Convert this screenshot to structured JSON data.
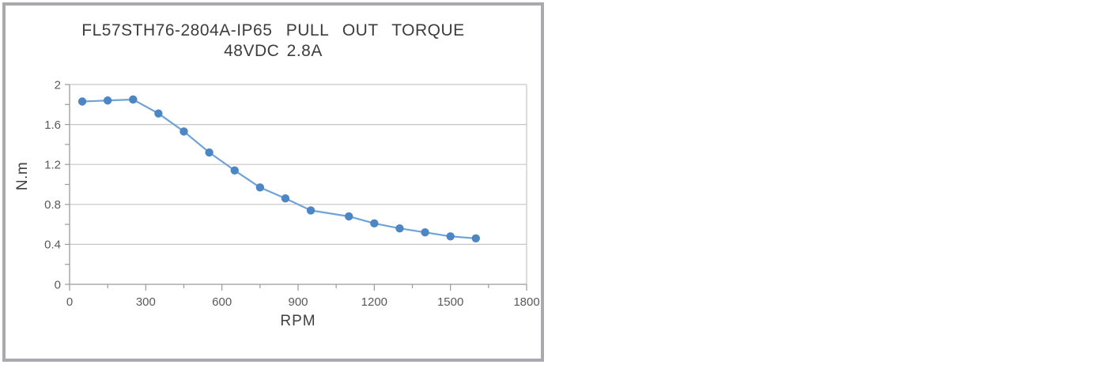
{
  "page": {
    "background_color": "#ffffff"
  },
  "chart": {
    "frame_border_color": "#a9a9ae",
    "title_color": "#3d3d3d",
    "tick_label_color": "#595959",
    "axis_line_color": "#9b9b9b",
    "gridline_color": "#c6c6c6"
  },
  "chart_data": {
    "type": "line",
    "title": "FL57STH76-2804A-IP65 PULL OUT TORQUE 48VDC 2.8A",
    "title_lines": [
      "FL57STH76-2804A-IP65 PULL OUT TORQUE",
      "48VDC 2.8A"
    ],
    "xlabel": "RPM",
    "ylabel": "N.m",
    "x": [
      50,
      150,
      250,
      350,
      450,
      550,
      650,
      750,
      850,
      950,
      1100,
      1200,
      1300,
      1400,
      1500,
      1600
    ],
    "values": [
      1.83,
      1.84,
      1.85,
      1.71,
      1.53,
      1.32,
      1.14,
      0.97,
      0.86,
      0.74,
      0.68,
      0.61,
      0.56,
      0.52,
      0.48,
      0.46
    ],
    "xlim": [
      0,
      1800
    ],
    "ylim": [
      0,
      2
    ],
    "x_major_ticks": [
      0,
      300,
      600,
      900,
      1200,
      1500,
      1800
    ],
    "x_tick_labels": [
      "0",
      "300",
      "600",
      "900",
      "1200",
      "1500",
      "1800"
    ],
    "x_minor_step": 150,
    "y_major_ticks": [
      0,
      0.4,
      0.8,
      1.2,
      1.6,
      2
    ],
    "y_tick_labels": [
      "0",
      "0.4",
      "0.8",
      "1.2",
      "1.6",
      "2"
    ],
    "y_minor_step": 0.2,
    "grid": "horizontal",
    "legend": "none",
    "line_color": "#6fa3d8",
    "marker_color": "#4d86c5"
  }
}
